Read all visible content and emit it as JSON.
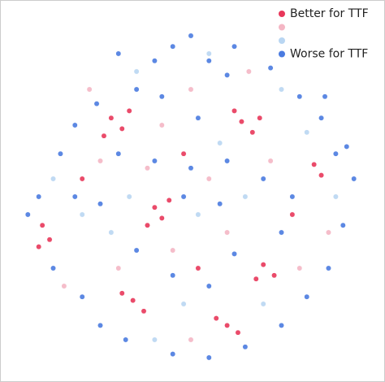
{
  "chart_data": {
    "type": "scatter",
    "xlim": [
      0,
      100
    ],
    "ylim": [
      0,
      100
    ],
    "series": [
      {
        "name": "Better for TTF",
        "color": "#e8375a",
        "x": [
          28,
          31,
          33,
          26,
          64,
          67,
          62,
          69,
          40,
          42,
          38,
          44,
          9,
          11,
          8,
          70,
          73,
          68,
          34,
          37,
          31,
          60,
          63,
          57,
          86,
          84,
          52,
          20,
          48,
          78
        ],
        "y": [
          72,
          69,
          74,
          67,
          71,
          68,
          74,
          72,
          47,
          44,
          42,
          49,
          42,
          38,
          36,
          31,
          28,
          27,
          21,
          18,
          23,
          14,
          12,
          16,
          56,
          59,
          30,
          55,
          62,
          45
        ]
      },
      {
        "name": null,
        "color": "#f4b6c4",
        "x": [
          25,
          50,
          72,
          45,
          30,
          80,
          55,
          15,
          60,
          38,
          66,
          22,
          88,
          50,
          42
        ],
        "y": [
          60,
          80,
          60,
          35,
          30,
          30,
          55,
          25,
          40,
          58,
          85,
          80,
          40,
          10,
          70
        ]
      },
      {
        "name": null,
        "color": "#b9d6f2",
        "x": [
          35,
          55,
          20,
          75,
          48,
          65,
          28,
          82,
          12,
          58,
          40,
          90,
          70,
          33,
          52
        ],
        "y": [
          85,
          90,
          45,
          80,
          20,
          50,
          40,
          68,
          55,
          65,
          10,
          50,
          20,
          50,
          45
        ]
      },
      {
        "name": "Worse for TTF",
        "color": "#4a7be0",
        "x": [
          50,
          45,
          55,
          40,
          60,
          35,
          24,
          18,
          14,
          8,
          5,
          12,
          20,
          25,
          32,
          45,
          55,
          65,
          75,
          82,
          88,
          92,
          95,
          90,
          86,
          80,
          72,
          62,
          30,
          40,
          50,
          60,
          70,
          78,
          75,
          62,
          55,
          45,
          35,
          25,
          18,
          48,
          58,
          42,
          52,
          30,
          87,
          93
        ],
        "y": [
          95,
          92,
          88,
          88,
          84,
          80,
          76,
          70,
          62,
          50,
          45,
          30,
          22,
          14,
          10,
          6,
          5,
          8,
          14,
          22,
          30,
          42,
          55,
          62,
          72,
          78,
          86,
          92,
          62,
          60,
          58,
          60,
          55,
          50,
          40,
          34,
          25,
          28,
          35,
          48,
          50,
          50,
          48,
          78,
          72,
          90,
          78,
          64
        ]
      }
    ]
  }
}
